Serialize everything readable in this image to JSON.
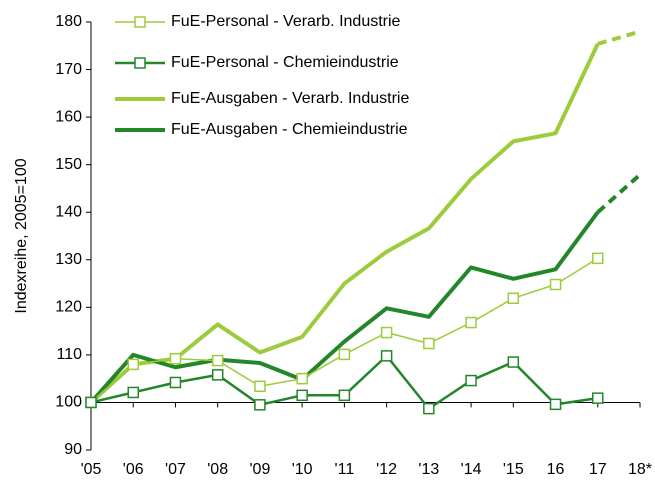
{
  "chart_data": {
    "type": "line",
    "y_label": "Indexreihe, 2005=100",
    "categories": [
      "'05",
      "'06",
      "'07",
      "'08",
      "'09",
      "'10",
      "'11",
      "'12",
      "'13",
      "'14",
      "'15",
      "16",
      "17",
      "18*"
    ],
    "series": [
      {
        "name": "FuE-Personal - Verarb. Industrie",
        "color": "#9dcb3b",
        "width": 1.5,
        "marker": "square",
        "values": [
          100,
          108,
          109.2,
          108.8,
          103.4,
          105,
          110.1,
          114.7,
          112.4,
          116.8,
          121.9,
          124.8,
          130.3,
          null
        ]
      },
      {
        "name": "FuE-Personal - Chemieindustrie",
        "color": "#23872a",
        "width": 2.5,
        "marker": "square",
        "values": [
          100,
          102.1,
          104.2,
          105.8,
          99.5,
          101.5,
          101.5,
          109.8,
          98.7,
          104.6,
          108.5,
          99.6,
          100.9,
          null
        ]
      },
      {
        "name": "FuE-Ausgaben - Verarb. Industrie",
        "color": "#9dcb3b",
        "width": 4,
        "marker": "none",
        "values": [
          100,
          108,
          109.2,
          116.4,
          110.5,
          113.8,
          125,
          131.7,
          136.6,
          147,
          154.9,
          156.6,
          175.4,
          178
        ]
      },
      {
        "name": "FuE-Ausgaben - Chemieindustrie",
        "color": "#23872a",
        "width": 4,
        "marker": "none",
        "values": [
          100,
          110,
          107.4,
          109,
          108.3,
          104.8,
          112.8,
          119.8,
          118,
          128.4,
          126,
          128,
          140,
          147.9
        ]
      }
    ],
    "dashed_from_index": 12,
    "x_axis_crosses": 100,
    "ylim": [
      90,
      180
    ],
    "yticks": [
      90,
      100,
      110,
      120,
      130,
      140,
      150,
      160,
      170,
      180
    ],
    "grid": false,
    "legend": "top-left"
  }
}
